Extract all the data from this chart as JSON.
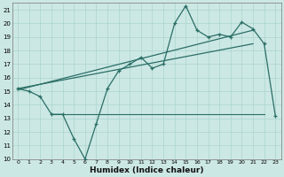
{
  "title": "",
  "xlabel": "Humidex (Indice chaleur)",
  "bg_color": "#cce8e4",
  "grid_color": "#aad4cc",
  "line_color": "#2a6e66",
  "xlim": [
    -0.5,
    23.5
  ],
  "ylim": [
    10,
    21.5
  ],
  "xticks": [
    0,
    1,
    2,
    3,
    4,
    5,
    6,
    7,
    8,
    9,
    10,
    11,
    12,
    13,
    14,
    15,
    16,
    17,
    18,
    19,
    20,
    21,
    22,
    23
  ],
  "yticks": [
    10,
    11,
    12,
    13,
    14,
    15,
    16,
    17,
    18,
    19,
    20,
    21
  ],
  "data_x": [
    0,
    1,
    2,
    3,
    4,
    5,
    6,
    7,
    8,
    9,
    10,
    11,
    12,
    13,
    14,
    15,
    16,
    17,
    18,
    19,
    20,
    21,
    22,
    23
  ],
  "data_y": [
    15.2,
    15.0,
    14.6,
    13.3,
    13.3,
    11.5,
    10.0,
    12.6,
    15.2,
    16.5,
    17.0,
    17.5,
    16.7,
    17.0,
    20.0,
    21.3,
    19.5,
    19.0,
    19.2,
    19.0,
    20.1,
    19.6,
    18.5,
    13.2
  ],
  "trend1_x": [
    0,
    21
  ],
  "trend1_y": [
    15.1,
    19.5
  ],
  "trend2_x": [
    0,
    21
  ],
  "trend2_y": [
    15.2,
    18.5
  ],
  "hline_y": 13.3,
  "hline_x_start": 3,
  "hline_x_end": 22,
  "xlabel_fontsize": 6.5,
  "tick_fontsize": 5.0
}
